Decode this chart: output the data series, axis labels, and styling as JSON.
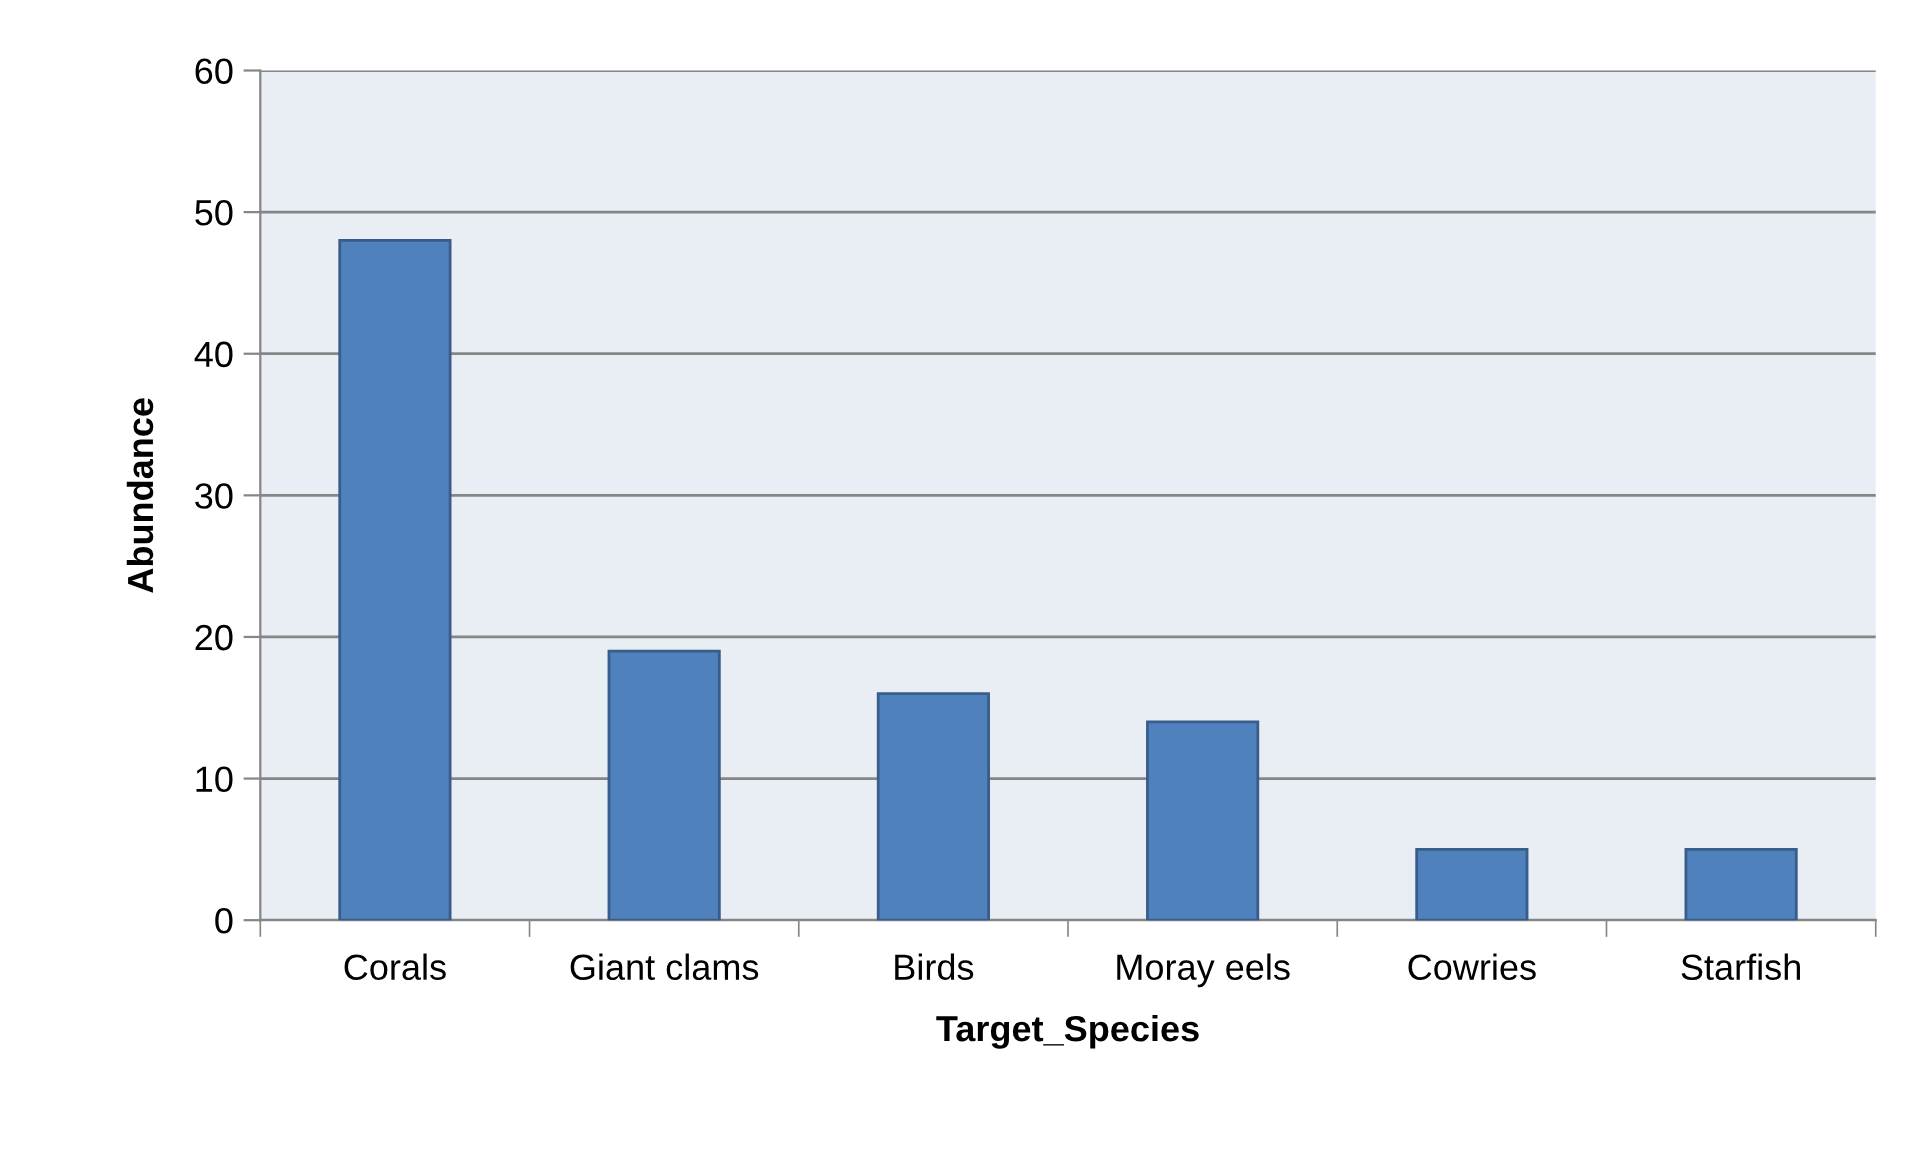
{
  "chart_data": {
    "type": "bar",
    "xlabel": "Target_Species",
    "ylabel": "Abundance",
    "categories": [
      "Corals",
      "Giant clams",
      "Birds",
      "Moray eels",
      "Cowries",
      "Starfish"
    ],
    "values": [
      48,
      19,
      16,
      14,
      5,
      5
    ],
    "color": "#4f81bd",
    "ylim": [
      0,
      60
    ],
    "yticks": [
      0,
      10,
      20,
      30,
      40,
      50,
      60
    ],
    "grid": "y",
    "legend": false
  }
}
